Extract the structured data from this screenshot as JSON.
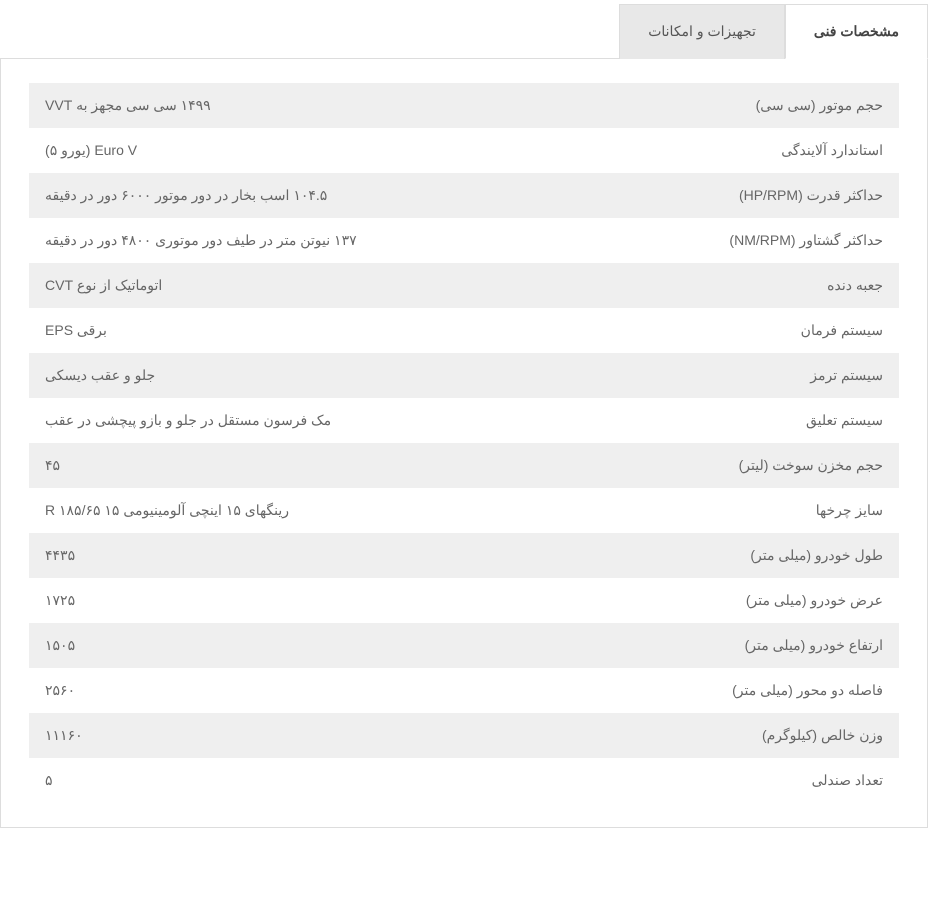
{
  "tabs": [
    {
      "label": "مشخصات فنی",
      "active": true
    },
    {
      "label": "تجهیزات و امکانات",
      "active": false
    }
  ],
  "specs": [
    {
      "label": "حجم موتور (سی سی)",
      "value": "۱۴۹۹ سی سی مجهز به VVT"
    },
    {
      "label": "استاندارد آلایندگی",
      "value": "Euro V (یورو ۵)"
    },
    {
      "label": "حداکثر قدرت (HP/RPM)",
      "value": "۱۰۴.۵ اسب بخار در دور موتور ۶۰۰۰ دور در دقیقه"
    },
    {
      "label": "حداکثر گشتاور (NM/RPM)",
      "value": "۱۳۷ نیوتن متر در طیف دور موتوری ۴۸۰۰ دور در دقیقه"
    },
    {
      "label": "جعبه دنده",
      "value": "اتوماتیک از نوع CVT"
    },
    {
      "label": "سیستم فرمان",
      "value": "برقی EPS"
    },
    {
      "label": "سیستم ترمز",
      "value": "جلو و عقب دیسکی"
    },
    {
      "label": "سیستم تعلیق",
      "value": "مک فرسون مستقل در جلو و بازو پیچشی در عقب"
    },
    {
      "label": "حجم مخزن سوخت (لیتر)",
      "value": "۴۵"
    },
    {
      "label": "سایز چرخها",
      "value": "رینگهای ۱۵ اینچی آلومینیومی ۱۵ R ۱۸۵/۶۵"
    },
    {
      "label": "طول خودرو (میلی متر)",
      "value": "۴۴۳۵"
    },
    {
      "label": "عرض خودرو (میلی متر)",
      "value": "۱۷۲۵"
    },
    {
      "label": "ارتفاع خودرو (میلی متر)",
      "value": "۱۵۰۵"
    },
    {
      "label": "فاصله دو محور (میلی متر)",
      "value": "۲۵۶۰"
    },
    {
      "label": "وزن خالص (کیلوگرم)",
      "value": "۱۱۱۶۰"
    },
    {
      "label": "تعداد صندلی",
      "value": "۵"
    }
  ],
  "colors": {
    "row_alt_bg": "#efefef",
    "row_bg": "#ffffff",
    "border": "#dddddd",
    "text": "#666666",
    "tab_inactive_bg": "#e8e8e8"
  }
}
